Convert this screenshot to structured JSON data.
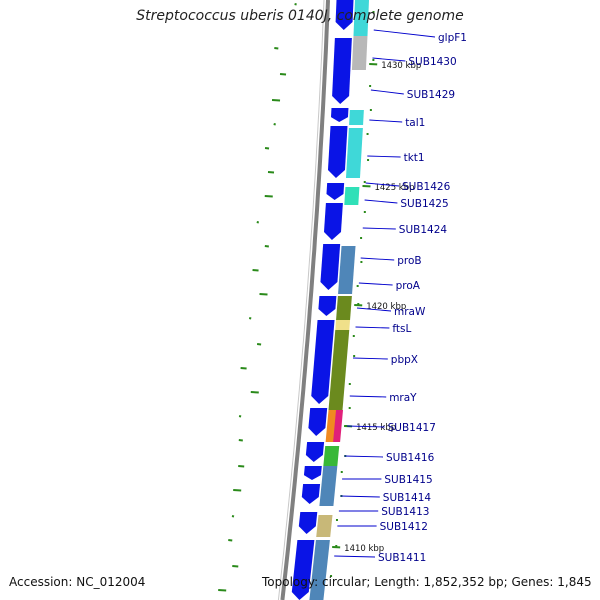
{
  "title": "Streptococcus uberis 0140J, complete genome",
  "footer": {
    "accession": "Accession: NC_012004",
    "stats": "Topology: circular; Length: 1,852,352 bp; Genes: 1,845"
  },
  "colors": {
    "cds": "#0a14e6",
    "backbone": "#808080",
    "label": "#00008b",
    "leader_line": "#0000cc",
    "tick": "#2a8a1a",
    "cog_cyan": "#3fd8d8",
    "cog_gray": "#b8b8b8",
    "cog_steel": "#4f86b8",
    "cog_olive": "#6b8a1e",
    "cog_khaki": "#f0e08a",
    "cog_magenta": "#e0207a",
    "cog_orange": "#f08a20",
    "cog_green": "#38b838",
    "cog_aqua": "#30e0b8",
    "cog_tan": "#c8b878"
  },
  "position_labels": [
    "1430 kbp",
    "1425 kbp",
    "1420 kbp",
    "1415 kbp",
    "1410 kbp"
  ],
  "genes": [
    "glpF1",
    "SUB1430",
    "SUB1429",
    "tal1",
    "tkt1",
    "SUB1426",
    "SUB1425",
    "SUB1424",
    "proB",
    "proA",
    "mraW",
    "ftsL",
    "pbpX",
    "mraY",
    "SUB1417",
    "SUB1416",
    "SUB1415",
    "SUB1414",
    "SUB1413",
    "SUB1412",
    "SUB1411"
  ]
}
